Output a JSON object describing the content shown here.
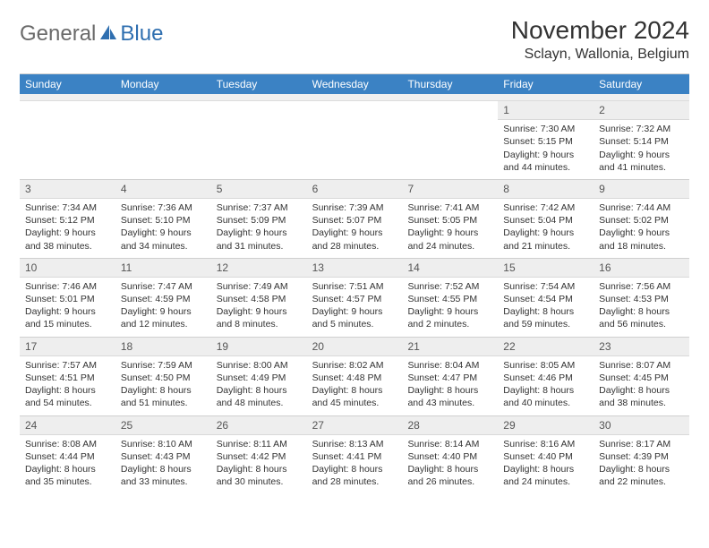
{
  "logo": {
    "word1": "General",
    "word2": "Blue"
  },
  "title": "November 2024",
  "location": "Sclayn, Wallonia, Belgium",
  "colors": {
    "header_bg": "#3b82c4",
    "header_text": "#ffffff",
    "daynum_bg": "#eeeeee",
    "border": "#cfcfcf",
    "logo_gray": "#6a6a6a",
    "logo_blue": "#2f6fb0"
  },
  "day_names": [
    "Sunday",
    "Monday",
    "Tuesday",
    "Wednesday",
    "Thursday",
    "Friday",
    "Saturday"
  ],
  "weeks": [
    [
      {
        "n": "",
        "sr": "",
        "ss": "",
        "dl": ""
      },
      {
        "n": "",
        "sr": "",
        "ss": "",
        "dl": ""
      },
      {
        "n": "",
        "sr": "",
        "ss": "",
        "dl": ""
      },
      {
        "n": "",
        "sr": "",
        "ss": "",
        "dl": ""
      },
      {
        "n": "",
        "sr": "",
        "ss": "",
        "dl": ""
      },
      {
        "n": "1",
        "sr": "Sunrise: 7:30 AM",
        "ss": "Sunset: 5:15 PM",
        "dl": "Daylight: 9 hours and 44 minutes."
      },
      {
        "n": "2",
        "sr": "Sunrise: 7:32 AM",
        "ss": "Sunset: 5:14 PM",
        "dl": "Daylight: 9 hours and 41 minutes."
      }
    ],
    [
      {
        "n": "3",
        "sr": "Sunrise: 7:34 AM",
        "ss": "Sunset: 5:12 PM",
        "dl": "Daylight: 9 hours and 38 minutes."
      },
      {
        "n": "4",
        "sr": "Sunrise: 7:36 AM",
        "ss": "Sunset: 5:10 PM",
        "dl": "Daylight: 9 hours and 34 minutes."
      },
      {
        "n": "5",
        "sr": "Sunrise: 7:37 AM",
        "ss": "Sunset: 5:09 PM",
        "dl": "Daylight: 9 hours and 31 minutes."
      },
      {
        "n": "6",
        "sr": "Sunrise: 7:39 AM",
        "ss": "Sunset: 5:07 PM",
        "dl": "Daylight: 9 hours and 28 minutes."
      },
      {
        "n": "7",
        "sr": "Sunrise: 7:41 AM",
        "ss": "Sunset: 5:05 PM",
        "dl": "Daylight: 9 hours and 24 minutes."
      },
      {
        "n": "8",
        "sr": "Sunrise: 7:42 AM",
        "ss": "Sunset: 5:04 PM",
        "dl": "Daylight: 9 hours and 21 minutes."
      },
      {
        "n": "9",
        "sr": "Sunrise: 7:44 AM",
        "ss": "Sunset: 5:02 PM",
        "dl": "Daylight: 9 hours and 18 minutes."
      }
    ],
    [
      {
        "n": "10",
        "sr": "Sunrise: 7:46 AM",
        "ss": "Sunset: 5:01 PM",
        "dl": "Daylight: 9 hours and 15 minutes."
      },
      {
        "n": "11",
        "sr": "Sunrise: 7:47 AM",
        "ss": "Sunset: 4:59 PM",
        "dl": "Daylight: 9 hours and 12 minutes."
      },
      {
        "n": "12",
        "sr": "Sunrise: 7:49 AM",
        "ss": "Sunset: 4:58 PM",
        "dl": "Daylight: 9 hours and 8 minutes."
      },
      {
        "n": "13",
        "sr": "Sunrise: 7:51 AM",
        "ss": "Sunset: 4:57 PM",
        "dl": "Daylight: 9 hours and 5 minutes."
      },
      {
        "n": "14",
        "sr": "Sunrise: 7:52 AM",
        "ss": "Sunset: 4:55 PM",
        "dl": "Daylight: 9 hours and 2 minutes."
      },
      {
        "n": "15",
        "sr": "Sunrise: 7:54 AM",
        "ss": "Sunset: 4:54 PM",
        "dl": "Daylight: 8 hours and 59 minutes."
      },
      {
        "n": "16",
        "sr": "Sunrise: 7:56 AM",
        "ss": "Sunset: 4:53 PM",
        "dl": "Daylight: 8 hours and 56 minutes."
      }
    ],
    [
      {
        "n": "17",
        "sr": "Sunrise: 7:57 AM",
        "ss": "Sunset: 4:51 PM",
        "dl": "Daylight: 8 hours and 54 minutes."
      },
      {
        "n": "18",
        "sr": "Sunrise: 7:59 AM",
        "ss": "Sunset: 4:50 PM",
        "dl": "Daylight: 8 hours and 51 minutes."
      },
      {
        "n": "19",
        "sr": "Sunrise: 8:00 AM",
        "ss": "Sunset: 4:49 PM",
        "dl": "Daylight: 8 hours and 48 minutes."
      },
      {
        "n": "20",
        "sr": "Sunrise: 8:02 AM",
        "ss": "Sunset: 4:48 PM",
        "dl": "Daylight: 8 hours and 45 minutes."
      },
      {
        "n": "21",
        "sr": "Sunrise: 8:04 AM",
        "ss": "Sunset: 4:47 PM",
        "dl": "Daylight: 8 hours and 43 minutes."
      },
      {
        "n": "22",
        "sr": "Sunrise: 8:05 AM",
        "ss": "Sunset: 4:46 PM",
        "dl": "Daylight: 8 hours and 40 minutes."
      },
      {
        "n": "23",
        "sr": "Sunrise: 8:07 AM",
        "ss": "Sunset: 4:45 PM",
        "dl": "Daylight: 8 hours and 38 minutes."
      }
    ],
    [
      {
        "n": "24",
        "sr": "Sunrise: 8:08 AM",
        "ss": "Sunset: 4:44 PM",
        "dl": "Daylight: 8 hours and 35 minutes."
      },
      {
        "n": "25",
        "sr": "Sunrise: 8:10 AM",
        "ss": "Sunset: 4:43 PM",
        "dl": "Daylight: 8 hours and 33 minutes."
      },
      {
        "n": "26",
        "sr": "Sunrise: 8:11 AM",
        "ss": "Sunset: 4:42 PM",
        "dl": "Daylight: 8 hours and 30 minutes."
      },
      {
        "n": "27",
        "sr": "Sunrise: 8:13 AM",
        "ss": "Sunset: 4:41 PM",
        "dl": "Daylight: 8 hours and 28 minutes."
      },
      {
        "n": "28",
        "sr": "Sunrise: 8:14 AM",
        "ss": "Sunset: 4:40 PM",
        "dl": "Daylight: 8 hours and 26 minutes."
      },
      {
        "n": "29",
        "sr": "Sunrise: 8:16 AM",
        "ss": "Sunset: 4:40 PM",
        "dl": "Daylight: 8 hours and 24 minutes."
      },
      {
        "n": "30",
        "sr": "Sunrise: 8:17 AM",
        "ss": "Sunset: 4:39 PM",
        "dl": "Daylight: 8 hours and 22 minutes."
      }
    ]
  ]
}
